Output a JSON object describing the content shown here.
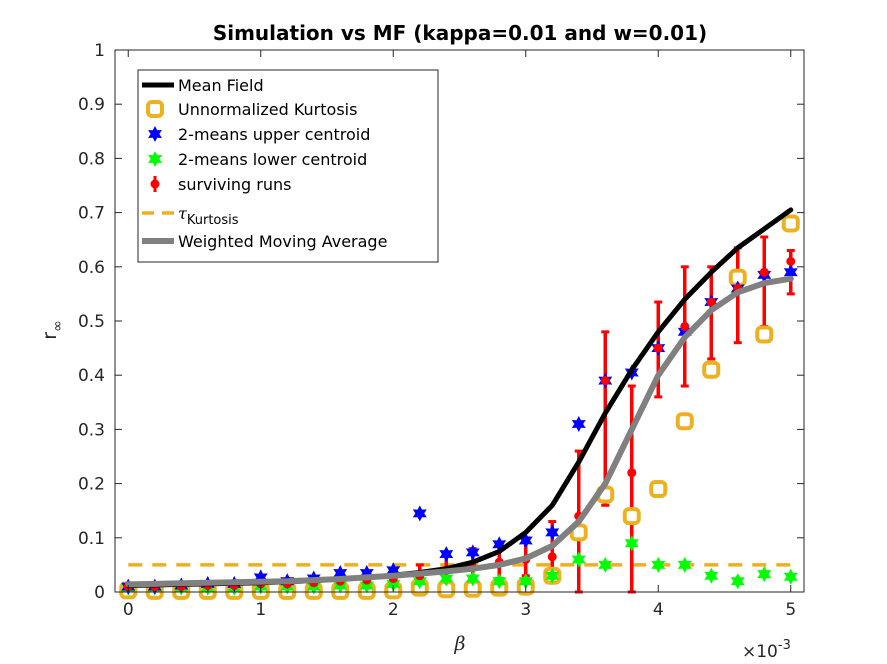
{
  "chart_data": {
    "type": "scatter",
    "title": "Simulation vs MF (kappa=0.01 and w=0.01)",
    "xlabel": "β",
    "ylabel": "r",
    "ylabel_subscript": "∞",
    "x_exponent": "×10",
    "x_exponent_power": "-3",
    "xlim": [
      -0.1,
      5.1
    ],
    "ylim": [
      0,
      1
    ],
    "x_ticks": [
      "0",
      "1",
      "2",
      "3",
      "4",
      "5"
    ],
    "y_ticks": [
      "0",
      "0.1",
      "0.2",
      "0.3",
      "0.4",
      "0.5",
      "0.6",
      "0.7",
      "0.8",
      "0.9",
      "1"
    ],
    "legend_position": "top-left",
    "legend": [
      {
        "label": "Mean Field",
        "style": "line",
        "color": "#000000"
      },
      {
        "label": "Unnormalized Kurtosis",
        "style": "ring",
        "color": "#EDB120"
      },
      {
        "label": "2-means upper centroid",
        "style": "star",
        "color": "#0000FF"
      },
      {
        "label": "2-means lower centroid",
        "style": "star",
        "color": "#00FF00"
      },
      {
        "label": "surviving runs",
        "style": "dot",
        "color": "#FF0000"
      },
      {
        "label": "τ",
        "label_sub": "Kurtosis",
        "style": "dashed",
        "color": "#EDB120"
      },
      {
        "label": "Weighted Moving Average",
        "style": "line",
        "color": "#808080"
      }
    ],
    "series": [
      {
        "id": "mean_field",
        "color": "#000000",
        "x": [
          0,
          0.2,
          0.4,
          0.6,
          0.8,
          1.0,
          1.2,
          1.4,
          1.6,
          1.8,
          2.0,
          2.2,
          2.4,
          2.6,
          2.8,
          3.0,
          3.2,
          3.4,
          3.6,
          3.8,
          4.0,
          4.2,
          4.4,
          4.6,
          4.8,
          5.0
        ],
        "y": [
          0.012,
          0.013,
          0.014,
          0.015,
          0.016,
          0.017,
          0.019,
          0.021,
          0.024,
          0.027,
          0.031,
          0.036,
          0.043,
          0.055,
          0.075,
          0.11,
          0.16,
          0.24,
          0.33,
          0.41,
          0.48,
          0.54,
          0.59,
          0.635,
          0.67,
          0.705
        ]
      },
      {
        "id": "weighted_moving_average",
        "color": "#808080",
        "x": [
          0,
          0.2,
          0.4,
          0.6,
          0.8,
          1.0,
          1.2,
          1.4,
          1.6,
          1.8,
          2.0,
          2.2,
          2.4,
          2.6,
          2.8,
          3.0,
          3.2,
          3.4,
          3.6,
          3.8,
          4.0,
          4.2,
          4.4,
          4.6,
          4.8,
          5.0
        ],
        "y": [
          0.014,
          0.015,
          0.016,
          0.017,
          0.018,
          0.019,
          0.02,
          0.022,
          0.024,
          0.027,
          0.03,
          0.034,
          0.038,
          0.043,
          0.05,
          0.062,
          0.085,
          0.13,
          0.2,
          0.3,
          0.4,
          0.47,
          0.52,
          0.553,
          0.57,
          0.578
        ]
      },
      {
        "id": "tau_kurtosis",
        "color": "#EDB120",
        "x": [
          0,
          5
        ],
        "y": [
          0.05,
          0.05
        ]
      },
      {
        "id": "unnormalized_kurtosis",
        "color": "#EDB120",
        "x": [
          0,
          0.2,
          0.4,
          0.6,
          0.8,
          1.0,
          1.2,
          1.4,
          1.6,
          1.8,
          2.0,
          2.2,
          2.4,
          2.6,
          2.8,
          3.0,
          3.2,
          3.4,
          3.6,
          3.8,
          4.0,
          4.2,
          4.4,
          4.6,
          4.8,
          5.0
        ],
        "y": [
          0.003,
          0.002,
          0.002,
          0.002,
          0.002,
          0.002,
          0.002,
          0.002,
          0.002,
          0.002,
          0.003,
          0.008,
          0.005,
          0.006,
          0.008,
          0.01,
          0.03,
          0.11,
          0.18,
          0.14,
          0.19,
          0.315,
          0.41,
          0.58,
          0.475,
          0.68
        ]
      },
      {
        "id": "upper_centroid",
        "color": "#0000FF",
        "x": [
          0,
          0.2,
          0.4,
          0.6,
          0.8,
          1.0,
          1.2,
          1.4,
          1.6,
          1.8,
          2.0,
          2.2,
          2.4,
          2.6,
          2.8,
          3.0,
          3.2,
          3.4,
          3.6,
          3.8,
          4.0,
          4.2,
          4.4,
          4.6,
          4.8,
          5.0
        ],
        "y": [
          0.01,
          0.01,
          0.012,
          0.015,
          0.015,
          0.027,
          0.02,
          0.025,
          0.035,
          0.035,
          0.04,
          0.145,
          0.07,
          0.073,
          0.088,
          0.095,
          0.11,
          0.31,
          0.39,
          0.405,
          0.45,
          0.48,
          0.535,
          0.56,
          0.585,
          0.59
        ]
      },
      {
        "id": "lower_centroid",
        "color": "#00FF00",
        "x": [
          0,
          0.2,
          0.4,
          0.6,
          0.8,
          1.0,
          1.2,
          1.4,
          1.6,
          1.8,
          2.0,
          2.2,
          2.4,
          2.6,
          2.8,
          3.0,
          3.2,
          3.4,
          3.6,
          3.8,
          4.0,
          4.2,
          4.4,
          4.6,
          4.8,
          5.0
        ],
        "y": [
          0.008,
          0.008,
          0.008,
          0.008,
          0.008,
          0.01,
          0.01,
          0.01,
          0.012,
          0.012,
          0.015,
          0.02,
          0.025,
          0.025,
          0.02,
          0.02,
          0.03,
          0.06,
          0.05,
          0.09,
          0.05,
          0.05,
          0.03,
          0.02,
          0.033,
          0.028
        ]
      },
      {
        "id": "surviving_runs",
        "color": "#FF0000",
        "x": [
          0,
          0.2,
          0.4,
          0.6,
          0.8,
          1.0,
          1.2,
          1.4,
          1.6,
          1.8,
          2.0,
          2.2,
          2.4,
          2.6,
          2.8,
          3.0,
          3.2,
          3.4,
          3.6,
          3.8,
          4.0,
          4.2,
          4.4,
          4.6,
          4.8,
          5.0
        ],
        "y": [
          0.01,
          0.01,
          0.01,
          0.012,
          0.012,
          0.015,
          0.015,
          0.017,
          0.02,
          0.022,
          0.025,
          0.03,
          0.04,
          0.045,
          0.055,
          0.06,
          0.065,
          0.14,
          0.39,
          0.22,
          0.45,
          0.49,
          0.535,
          0.56,
          0.59,
          0.61
        ],
        "err_low": [
          0.005,
          0.005,
          0.005,
          0.005,
          0.005,
          0.008,
          0.008,
          0.008,
          0.01,
          0.01,
          0.012,
          0.015,
          0.02,
          0.02,
          0.025,
          0.03,
          0.03,
          0.0,
          0.16,
          0.0,
          0.36,
          0.38,
          0.43,
          0.46,
          0.49,
          0.55
        ],
        "err_high": [
          0.015,
          0.015,
          0.015,
          0.018,
          0.018,
          0.022,
          0.022,
          0.025,
          0.03,
          0.035,
          0.04,
          0.05,
          0.07,
          0.08,
          0.09,
          0.1,
          0.13,
          0.26,
          0.48,
          0.38,
          0.535,
          0.6,
          0.6,
          0.635,
          0.655,
          0.63
        ]
      }
    ]
  }
}
